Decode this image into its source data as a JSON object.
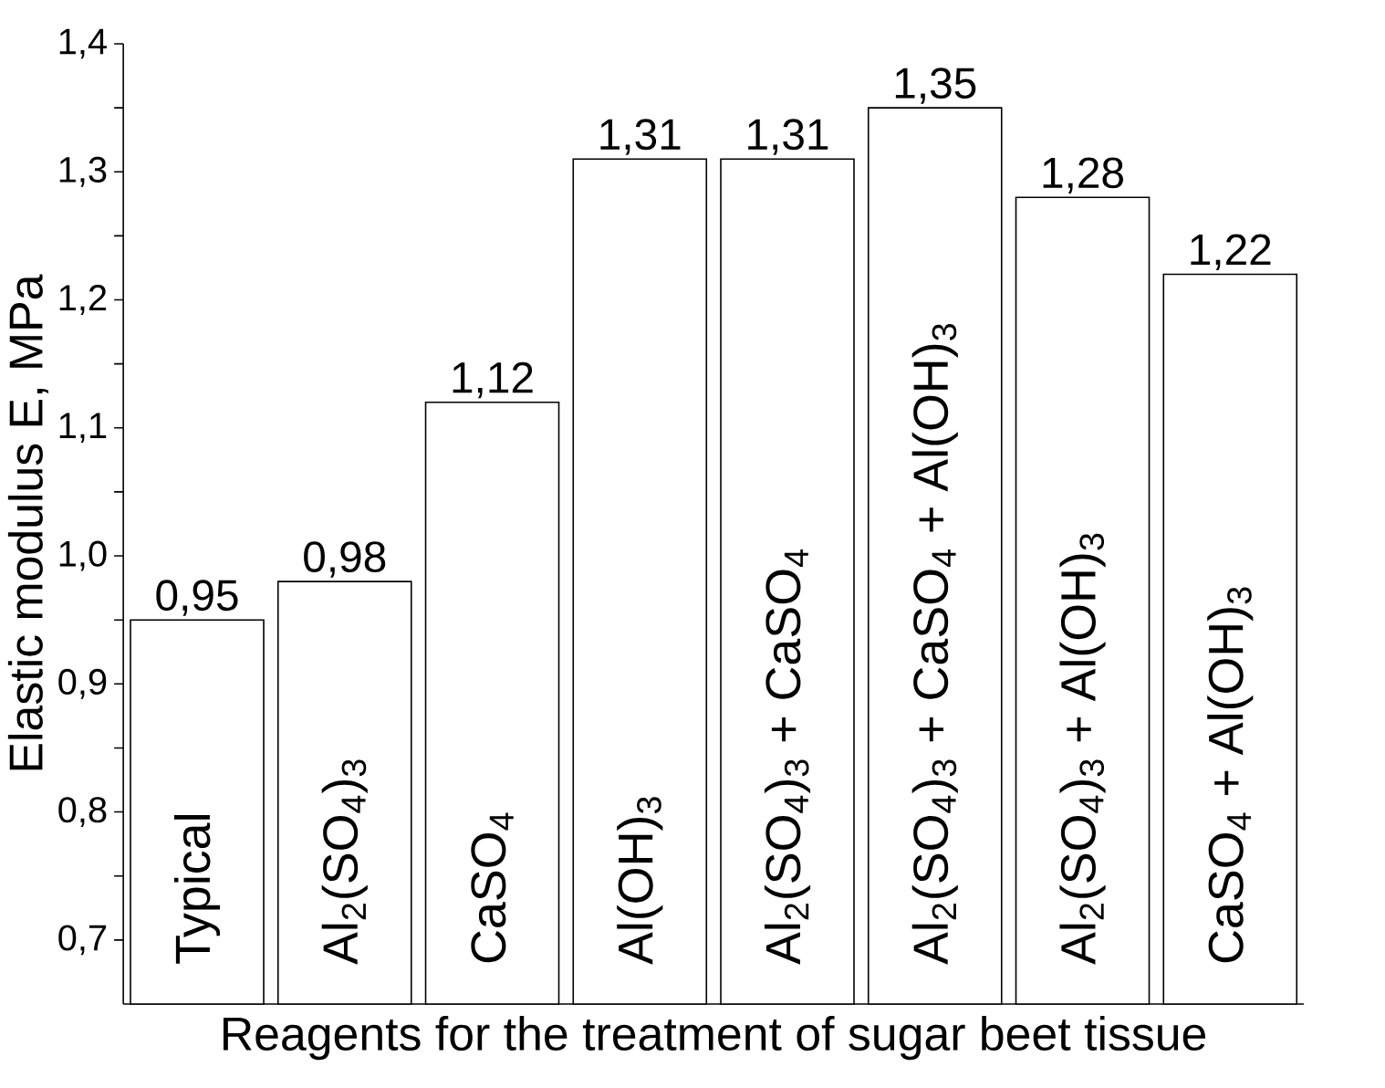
{
  "chart_data": {
    "type": "bar",
    "xlabel": "Reagents for the treatment of sugar beet tissue",
    "ylabel": "Elastic modulus E, MPa",
    "categories": [
      "Typical",
      "Al$_{2}$(SO$_{4}$)$_{3}$",
      "CaSO$_{4}$",
      "Al(OH)$_{3}$",
      "Al$_{2}$(SO$_{4}$)$_{3}$ + CaSO$_{4}$",
      "Al$_{2}$(SO$_{4}$)$_{3}$ + CaSO$_{4}$ + Al(OH)$_{3}$",
      "Al$_{2}$(SO$_{4}$)$_{3}$ + Al(OH)$_{3}$",
      "CaSO$_{4}$ + Al(OH)$_{3}$"
    ],
    "values": [
      0.95,
      0.98,
      1.12,
      1.31,
      1.31,
      1.35,
      1.28,
      1.22
    ],
    "value_labels": [
      "0,95",
      "0,98",
      "1,12",
      "1,31",
      "1,31",
      "1,35",
      "1,28",
      "1,22"
    ],
    "color": "#ffffff",
    "ylim": [
      0.65,
      1.4
    ],
    "yticks": [
      {
        "value": 0.7,
        "label": "0,7"
      },
      {
        "value": 0.75,
        "label": null
      },
      {
        "value": 0.8,
        "label": "0,8"
      },
      {
        "value": 0.85,
        "label": null
      },
      {
        "value": 0.9,
        "label": "0,9"
      },
      {
        "value": 0.95,
        "label": null
      },
      {
        "value": 1.0,
        "label": "1,0"
      },
      {
        "value": 1.05,
        "label": null
      },
      {
        "value": 1.1,
        "label": "1,1"
      },
      {
        "value": 1.15,
        "label": null
      },
      {
        "value": 1.2,
        "label": "1,2"
      },
      {
        "value": 1.25,
        "label": null
      },
      {
        "value": 1.3,
        "label": "1,3"
      },
      {
        "value": 1.35,
        "label": null
      },
      {
        "value": 1.4,
        "label": "1,4"
      }
    ],
    "grid": false
  }
}
